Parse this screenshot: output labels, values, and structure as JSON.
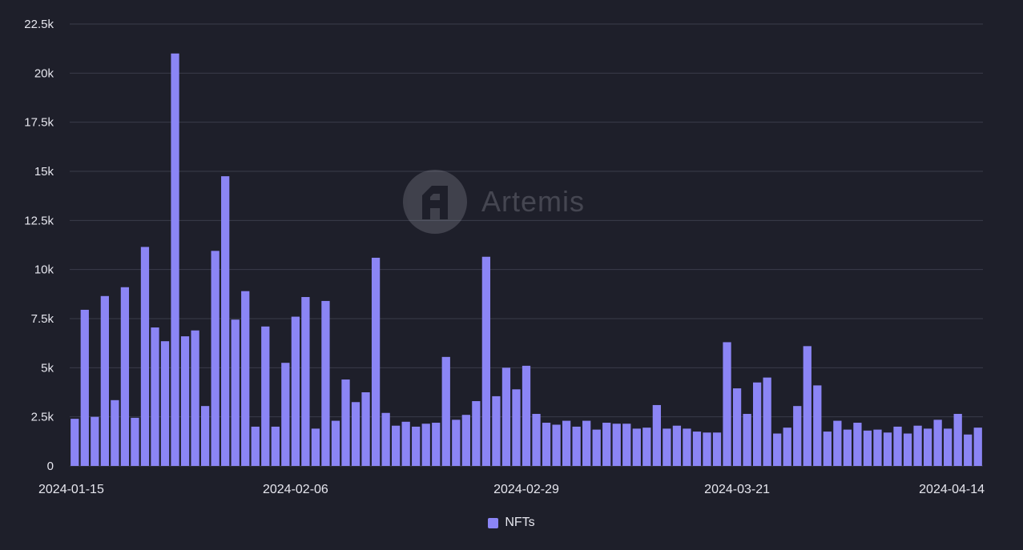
{
  "watermark": {
    "brand_label": "Artemis"
  },
  "legend": {
    "label": "NFTs"
  },
  "colors": {
    "background": "#1e1f2a",
    "bar": "#8b85f5",
    "grid": "#3a3c4a",
    "tick_text": "#e6e6ee"
  },
  "chart_data": {
    "type": "bar",
    "title": "",
    "xlabel": "",
    "ylabel": "",
    "ylim": [
      0,
      22500
    ],
    "y_ticks": [
      0,
      2500,
      5000,
      7500,
      10000,
      12500,
      15000,
      17500,
      20000,
      22500
    ],
    "y_tick_labels": [
      "0",
      "2.5k",
      "5k",
      "7.5k",
      "10k",
      "12.5k",
      "15k",
      "17.5k",
      "20k",
      "22.5k"
    ],
    "x_tick_labels": [
      "2024-01-15",
      "2024-02-06",
      "2024-02-29",
      "2024-03-21",
      "2024-04-14"
    ],
    "grid": true,
    "legend_position": "bottom-center",
    "series": [
      {
        "name": "NFTs",
        "values": [
          2400,
          7950,
          2500,
          8650,
          3350,
          9100,
          2450,
          11150,
          7050,
          6350,
          21000,
          6600,
          6900,
          3050,
          10950,
          14750,
          7450,
          8900,
          2000,
          7100,
          2000,
          5250,
          7600,
          8600,
          1900,
          8400,
          2300,
          4400,
          3250,
          3750,
          10600,
          2700,
          2050,
          2250,
          2000,
          2150,
          2200,
          5550,
          2350,
          2600,
          3300,
          10650,
          3550,
          5000,
          3900,
          5100,
          2650,
          2200,
          2100,
          2300,
          2000,
          2300,
          1850,
          2200,
          2150,
          2150,
          1900,
          1950,
          3100,
          1900,
          2050,
          1900,
          1750,
          1700,
          1700,
          6300,
          3950,
          2650,
          4250,
          4500,
          1650,
          1950,
          3050,
          6100,
          4100,
          1750,
          2300,
          1850,
          2200,
          1800,
          1850,
          1700,
          2000,
          1650,
          2050,
          1900,
          2350,
          1900,
          2650,
          1600,
          1950
        ]
      }
    ]
  }
}
